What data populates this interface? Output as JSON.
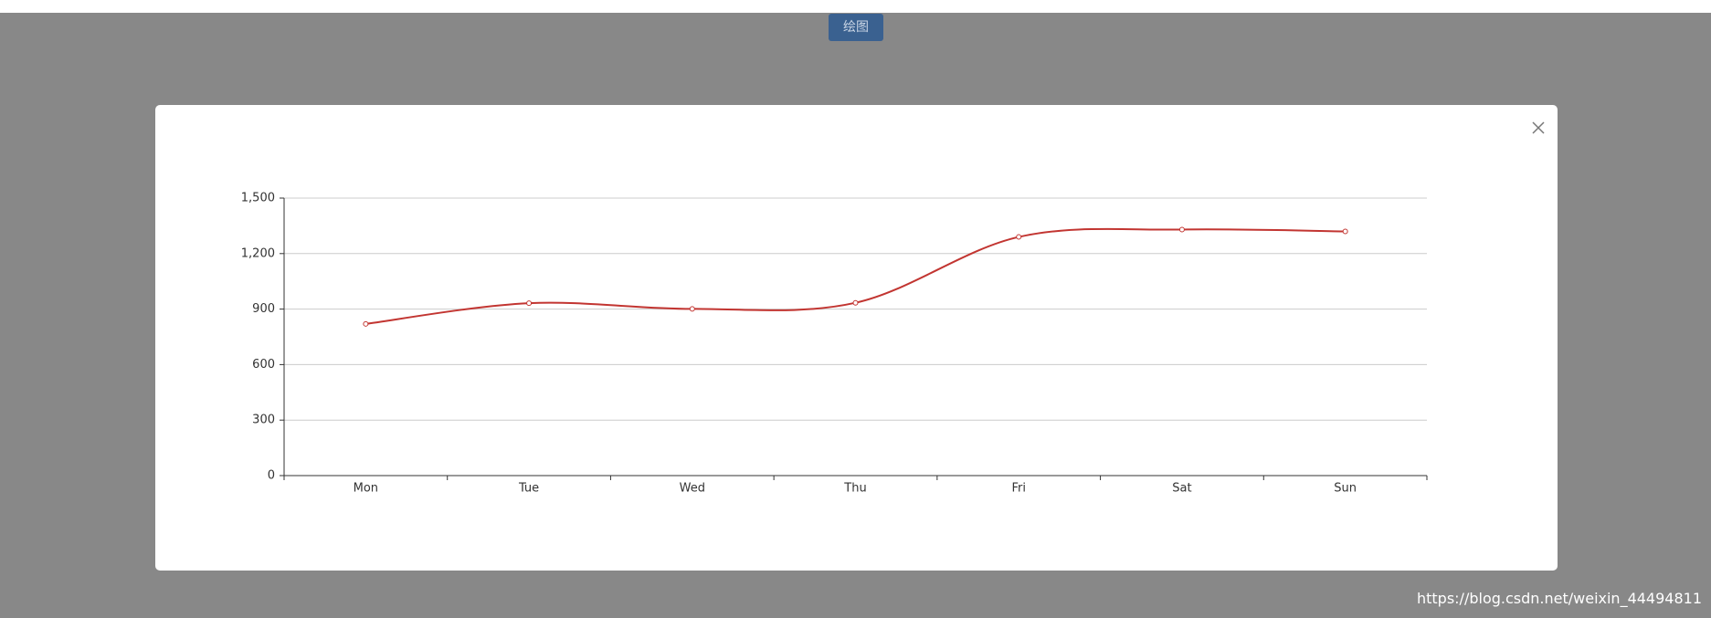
{
  "button": "绘图",
  "watermark": "https://blog.csdn.net/weixin_44494811",
  "chart_data": {
    "type": "line",
    "categories": [
      "Mon",
      "Tue",
      "Wed",
      "Thu",
      "Fri",
      "Sat",
      "Sun"
    ],
    "values": [
      820,
      932,
      901,
      934,
      1290,
      1330,
      1320
    ],
    "color": "#c23531",
    "smooth": true,
    "ylim": [
      0,
      1500
    ],
    "yticks": [
      0,
      300,
      600,
      900,
      {
        "value": 1200,
        "label": "1,200"
      },
      {
        "value": 1500,
        "label": "1,500"
      }
    ],
    "grid": true
  }
}
